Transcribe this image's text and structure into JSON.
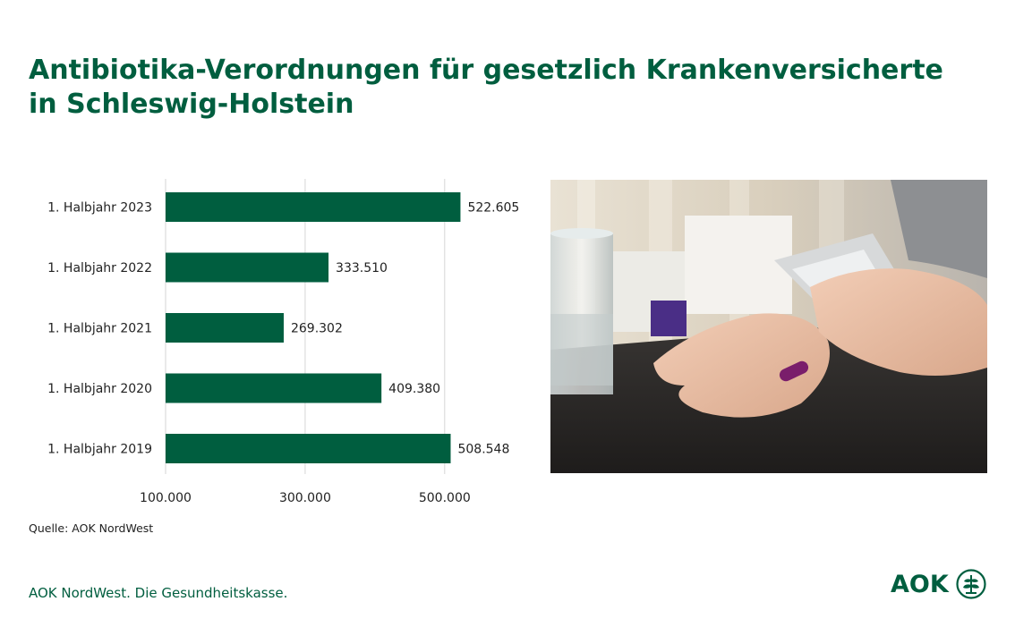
{
  "title_lines": [
    "Antibiotika-Verordnungen für gesetzlich Krankenversicherte",
    "in Schleswig-Holstein"
  ],
  "source": "Quelle: AOK NordWest",
  "footer_slogan": "AOK NordWest. Die Gesundheitskasse.",
  "logo_text": "AOK",
  "colors": {
    "brand": "#005e3f",
    "bar": "#005e3f"
  },
  "chart_data": {
    "type": "bar",
    "orientation": "horizontal",
    "categories": [
      "1. Halbjahr 2023",
      "1. Halbjahr 2022",
      "1. Halbjahr 2021",
      "1. Halbjahr 2020",
      "1. Halbjahr 2019"
    ],
    "values": [
      522605,
      333510,
      269302,
      409380,
      508548
    ],
    "value_labels": [
      "522.605",
      "333.510",
      "269.302",
      "409.380",
      "508.548"
    ],
    "xlim": [
      100000,
      540000
    ],
    "xticks": [
      100000,
      300000,
      500000
    ],
    "xtick_labels": [
      "100.000",
      "300.000",
      "500.000"
    ],
    "grid": true
  }
}
